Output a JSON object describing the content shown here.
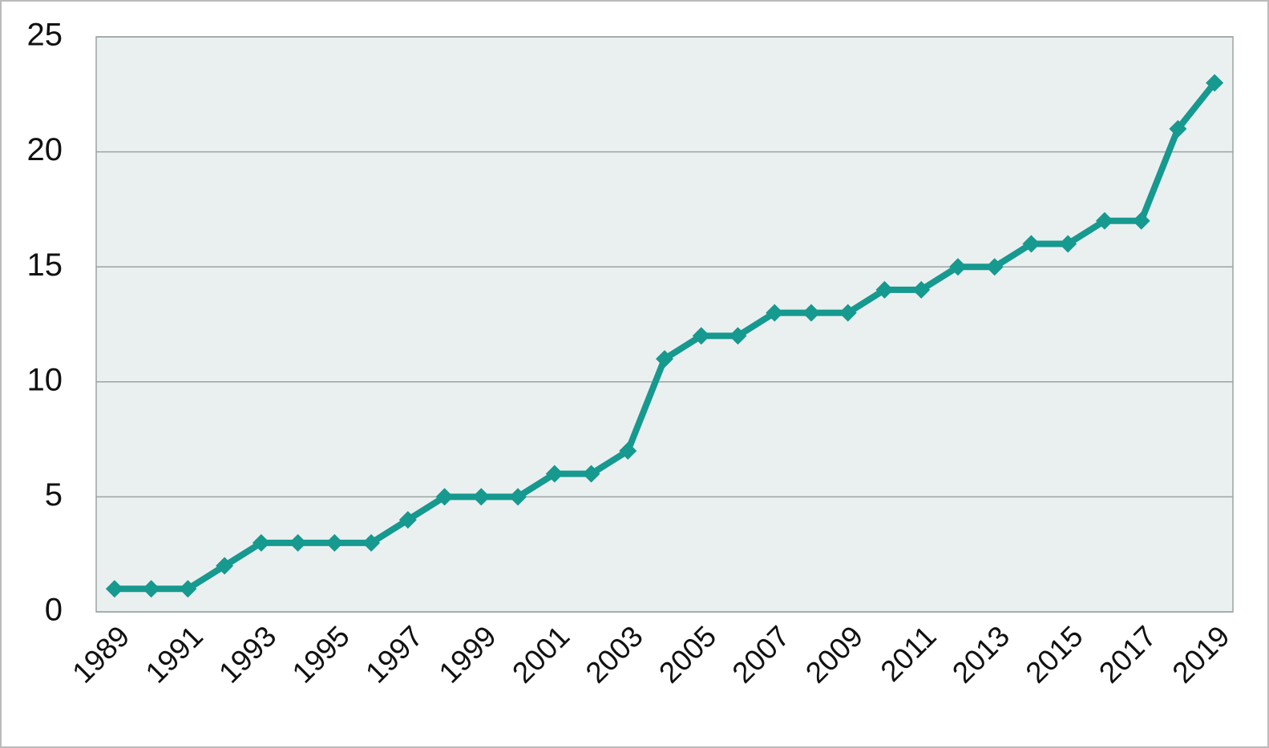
{
  "chart_data": {
    "type": "line",
    "categories": [
      "1989",
      null,
      "1991",
      null,
      "1993",
      null,
      "1995",
      null,
      "1997",
      null,
      "1999",
      null,
      "2001",
      null,
      "2003",
      null,
      "2005",
      null,
      "2007",
      null,
      "2009",
      null,
      "2011",
      null,
      "2013",
      null,
      "2015",
      null,
      "2017",
      null,
      "2019"
    ],
    "series": [
      {
        "color": "#16998f",
        "values": [
          1,
          1,
          1,
          2,
          3,
          3,
          3,
          3,
          4,
          5,
          5,
          5,
          6,
          6,
          7,
          11,
          12,
          12,
          13,
          13,
          13,
          14,
          14,
          15,
          15,
          16,
          16,
          17,
          17,
          21,
          23
        ]
      }
    ],
    "ylim": [
      0,
      25
    ],
    "yticks": [
      0,
      5,
      10,
      15,
      20,
      25
    ],
    "grid": true
  }
}
